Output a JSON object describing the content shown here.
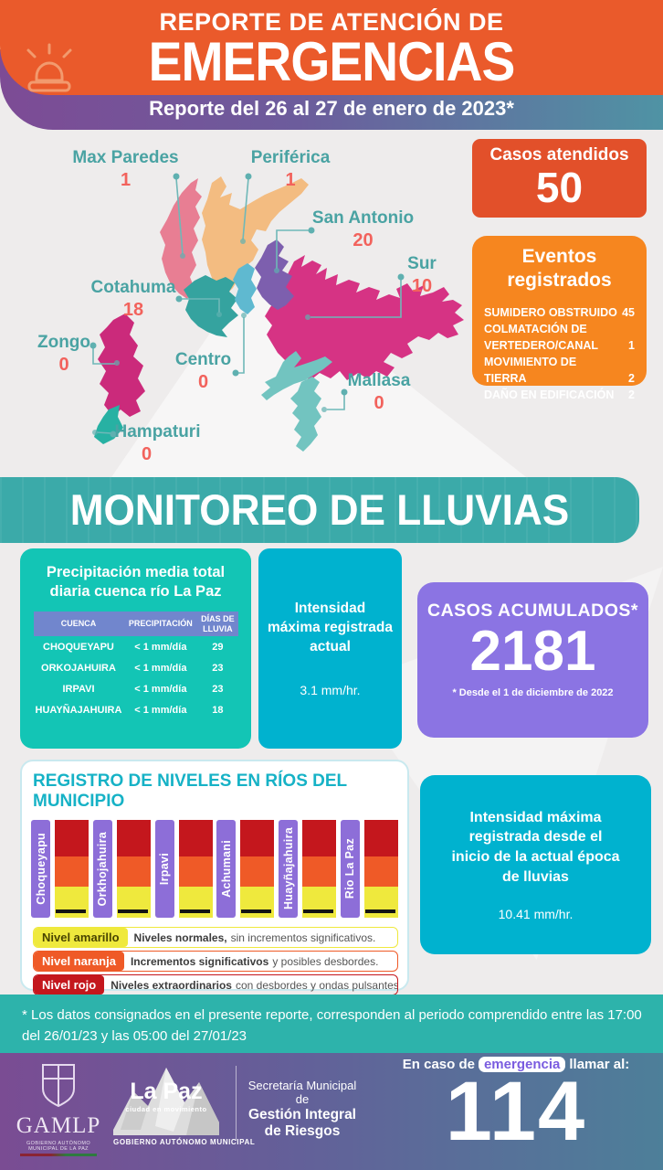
{
  "colors": {
    "header_orange": "#ea5a2b",
    "cases_box": "#e2502a",
    "events_box": "#f6861f",
    "teal_banner": "#3baaa9",
    "turquoise_box": "#13c5b5",
    "cyan_box": "#00b2cf",
    "purple_box": "#8b74e3",
    "table_header_blue": "#7186cd",
    "district_label_teal": "#4aa3a3",
    "district_value_red": "#f2625c",
    "gauge_label_purple": "#8d6ed8",
    "level_red": "#c4171d",
    "level_orange": "#ef5a27",
    "level_yellow": "#efe93d"
  },
  "header": {
    "title_line1": "REPORTE DE ATENCIÓN DE",
    "title_line2": "EMERGENCIAS",
    "subtitle": "Reporte del 26 al 27 de enero de 2023*"
  },
  "map": {
    "districts": [
      {
        "id": "max-paredes",
        "name": "Max Paredes",
        "value": "1",
        "color": "#e87e93"
      },
      {
        "id": "periferica",
        "name": "Periférica",
        "value": "1",
        "color": "#f3bc81"
      },
      {
        "id": "san-antonio",
        "name": "San Antonio",
        "value": "20",
        "color": "#7d5fae"
      },
      {
        "id": "sur",
        "name": "Sur",
        "value": "10",
        "color": "#d63384"
      },
      {
        "id": "cotahuma",
        "name": "Cotahuma",
        "value": "18",
        "color": "#35a39f"
      },
      {
        "id": "zongo",
        "name": "Zongo",
        "value": "0",
        "color": "#cb2a7b"
      },
      {
        "id": "centro",
        "name": "Centro",
        "value": "0",
        "color": "#5fb9d0"
      },
      {
        "id": "mallasa",
        "name": "Mallasa",
        "value": "0",
        "color": "#72c4c0"
      },
      {
        "id": "hampaturi",
        "name": "Hampaturi",
        "value": "0",
        "color": "#27b1a3"
      }
    ]
  },
  "cases": {
    "title": "Casos atendidos",
    "value": "50"
  },
  "events": {
    "title_line1": "Eventos",
    "title_line2": "registrados",
    "items": [
      {
        "label": "SUMIDERO OBSTRUIDO",
        "value": "45"
      },
      {
        "label": "COLMATACIÓN DE VERTEDERO/CANAL",
        "value": "1"
      },
      {
        "label": "MOVIMIENTO DE TIERRA",
        "value": "2"
      },
      {
        "label": "DAÑO EN EDIFICACIÓN",
        "value": "2"
      }
    ]
  },
  "monitoring": {
    "banner": "MONITOREO DE LLUVIAS",
    "precipitation": {
      "title": "Precipitación media total diaria cuenca río La Paz",
      "columns": [
        "CUENCA",
        "PRECIPITACIÓN",
        "DÍAS DE LLUVIA"
      ],
      "rows": [
        [
          "CHOQUEYAPU",
          "< 1 mm/día",
          "29"
        ],
        [
          "ORKOJAHUIRA",
          "< 1 mm/día",
          "23"
        ],
        [
          "IRPAVI",
          "< 1 mm/día",
          "23"
        ],
        [
          "HUAYÑAJAHUIRA",
          "< 1 mm/día",
          "18"
        ]
      ]
    },
    "intensity_current": {
      "label": "Intensidad máxima registrada actual",
      "value": "3.1 mm/hr."
    },
    "accumulated": {
      "title": "CASOS ACUMULADOS*",
      "value": "2181",
      "footnote": "* Desde el 1 de diciembre de 2022"
    },
    "intensity_season": {
      "label": "Intensidad máxima registrada desde el inicio de la actual época de lluvias",
      "value": "10.41 mm/hr."
    }
  },
  "rivers": {
    "title": "REGISTRO DE NIVELES EN RÍOS DEL MUNICIPIO",
    "names": [
      "Choqueyapu",
      "Orkhojahuira",
      "Irpavi",
      "Achumani",
      "Huayñajahuira",
      "Rio La Paz"
    ],
    "legend": [
      {
        "chip": "Nivel amarillo",
        "chip_color": "#efe93d",
        "chip_text_color": "#4a4500",
        "desc_bold": "Niveles normales,",
        "desc_rest": "sin incrementos significativos."
      },
      {
        "chip": "Nivel naranja",
        "chip_color": "#ef5a27",
        "chip_text_color": "#ffffff",
        "desc_bold": "Incrementos significativos",
        "desc_rest": "y posibles desbordes."
      },
      {
        "chip": "Nivel rojo",
        "chip_color": "#c4171d",
        "chip_text_color": "#ffffff",
        "desc_bold": "Niveles extraordinarios",
        "desc_rest": "con desbordes y ondas pulsantes."
      }
    ],
    "marker_label": "Marcador de nivel"
  },
  "footnote": "* Los datos consignados en el presente reporte, corresponden al periodo comprendido entre las 17:00 del 26/01/23 y las 05:00 del 27/01/23",
  "footer": {
    "gamlp_name": "GAMLP",
    "gamlp_sub": "GOBIERNO AUTÓNOMO MUNICIPAL DE LA PAZ",
    "lapaz_name": "La Paz",
    "lapaz_tagline": "ciudad en movimiento",
    "lapaz_gov": "GOBIERNO AUTÓNOMO MUNICIPAL",
    "secretary_line1": "Secretaría Municipal de",
    "secretary_line2": "Gestión Integral",
    "secretary_line3": "de Riesgos",
    "emergency_pre": "En caso de",
    "emergency_highlight": "emergencia",
    "emergency_post": "llamar al:",
    "phone": "114"
  }
}
